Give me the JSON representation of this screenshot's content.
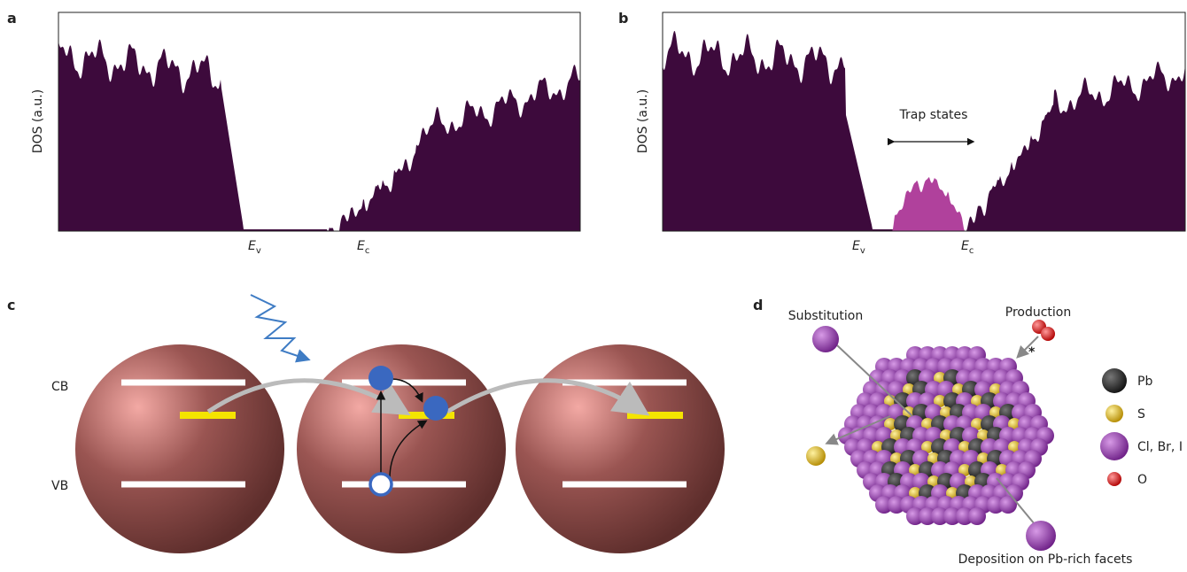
{
  "panels": {
    "a": {
      "label": "a",
      "y_label": "DOS (a.u.)",
      "ev": {
        "main": "E",
        "sub": "v"
      },
      "ec": {
        "main": "E",
        "sub": "c"
      }
    },
    "b": {
      "label": "b",
      "y_label": "DOS (a.u.)",
      "ev": {
        "main": "E",
        "sub": "v"
      },
      "ec": {
        "main": "E",
        "sub": "c"
      },
      "annotation": "Trap states"
    },
    "c": {
      "label": "c",
      "cb": "CB",
      "vb": "VB"
    },
    "d": {
      "label": "d",
      "annotations": [
        "Substitution",
        "Production",
        "Deposition on Pb-rich facets"
      ],
      "legend": [
        "Pb",
        "S",
        "Cl, Br, I",
        "O"
      ]
    }
  }
}
